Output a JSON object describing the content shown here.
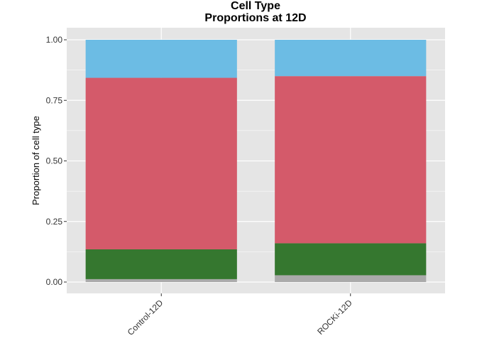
{
  "chart_data": {
    "type": "bar",
    "stacked": true,
    "title": "Cell Type",
    "subtitle": "Proportions at 12D",
    "xlabel": "",
    "ylabel": "Proportion of cell type",
    "ylim": [
      0,
      1.0
    ],
    "yticks": [
      "0.00",
      "0.25",
      "0.50",
      "0.75",
      "1.00"
    ],
    "categories": [
      "Control-12D",
      "ROCKi-12D"
    ],
    "series": [
      {
        "color": "#aaaaaa",
        "values": [
          0.012,
          0.028
        ]
      },
      {
        "color": "#35772f",
        "values": [
          0.123,
          0.132
        ]
      },
      {
        "color": "#d45a6a",
        "values": [
          0.708,
          0.69
        ]
      },
      {
        "color": "#6cbce4",
        "values": [
          0.157,
          0.15
        ]
      }
    ],
    "grid": true,
    "legend": "none",
    "colors": {
      "panel_background": "#e5e5e5",
      "gridline": "#ffffff"
    }
  }
}
